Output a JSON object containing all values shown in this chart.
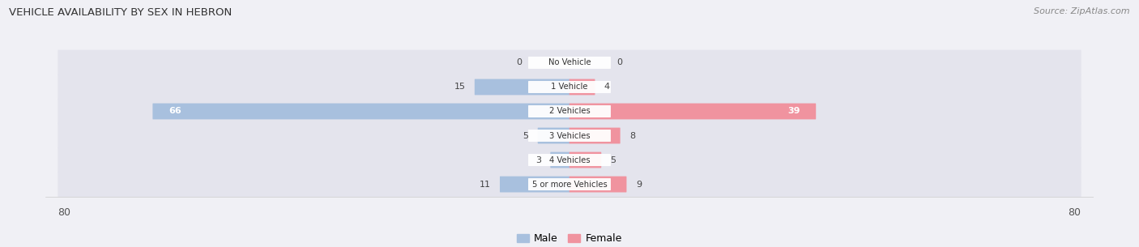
{
  "title": "VEHICLE AVAILABILITY BY SEX IN HEBRON",
  "source": "Source: ZipAtlas.com",
  "categories": [
    "No Vehicle",
    "1 Vehicle",
    "2 Vehicles",
    "3 Vehicles",
    "4 Vehicles",
    "5 or more Vehicles"
  ],
  "male_values": [
    0,
    15,
    66,
    5,
    3,
    11
  ],
  "female_values": [
    0,
    4,
    39,
    8,
    5,
    9
  ],
  "male_color": "#a8c0de",
  "female_color": "#f0939f",
  "axis_max": 80,
  "background_color": "#f0f0f5",
  "row_bg_color": "#e4e4ed",
  "title_color": "#333333",
  "source_color": "#888888"
}
